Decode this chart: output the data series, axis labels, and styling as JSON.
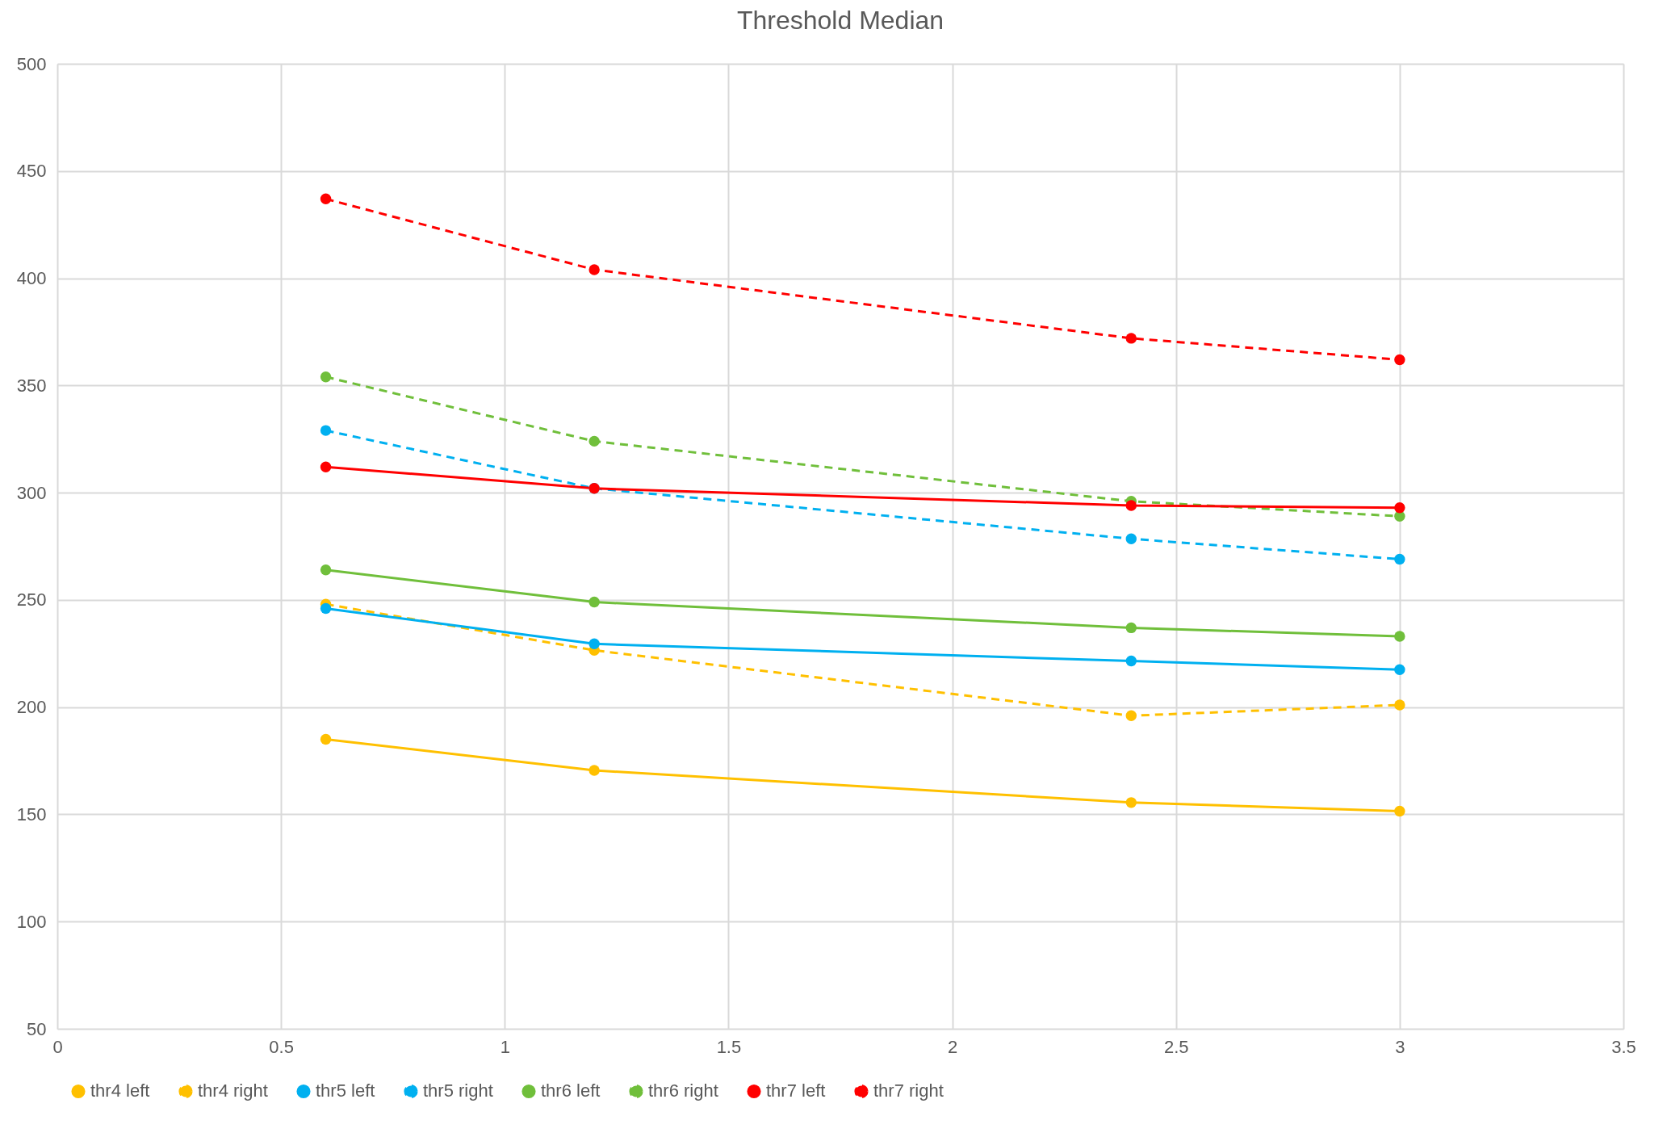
{
  "chart_data": {
    "type": "line",
    "title": "Threshold Median",
    "x": [
      0.6,
      1.2,
      2.4,
      3
    ],
    "xlim": [
      0,
      3.5
    ],
    "xticks": [
      0,
      0.5,
      1,
      1.5,
      2,
      2.5,
      3,
      3.5
    ],
    "ylim": [
      50,
      500
    ],
    "yticks": [
      50,
      100,
      150,
      200,
      250,
      300,
      350,
      400,
      450,
      500
    ],
    "grid": true,
    "legend": "bottom",
    "marker": "circle",
    "series": [
      {
        "name": "thr4 left",
        "color": "#ffc000",
        "line_style": "solid",
        "values": [
          185,
          170.5,
          155.5,
          151.5
        ]
      },
      {
        "name": "thr4 right",
        "color": "#ffc000",
        "line_style": "dashed",
        "values": [
          248,
          226.5,
          196,
          201
        ]
      },
      {
        "name": "thr5 left",
        "color": "#00b0f0",
        "line_style": "solid",
        "values": [
          246,
          229.5,
          221.5,
          217.5
        ]
      },
      {
        "name": "thr5 right",
        "color": "#00b0f0",
        "line_style": "dashed",
        "values": [
          329,
          302,
          278.5,
          269
        ]
      },
      {
        "name": "thr6 left",
        "color": "#70bf3b",
        "line_style": "solid",
        "values": [
          264,
          249,
          237,
          233
        ]
      },
      {
        "name": "thr6 right",
        "color": "#70bf3b",
        "line_style": "dashed",
        "values": [
          354,
          324,
          296,
          289
        ]
      },
      {
        "name": "thr7 left",
        "color": "#ff0000",
        "line_style": "solid",
        "values": [
          312,
          302,
          294,
          293
        ]
      },
      {
        "name": "thr7 right",
        "color": "#ff0000",
        "line_style": "dashed",
        "values": [
          437,
          404,
          372,
          362
        ]
      }
    ]
  }
}
